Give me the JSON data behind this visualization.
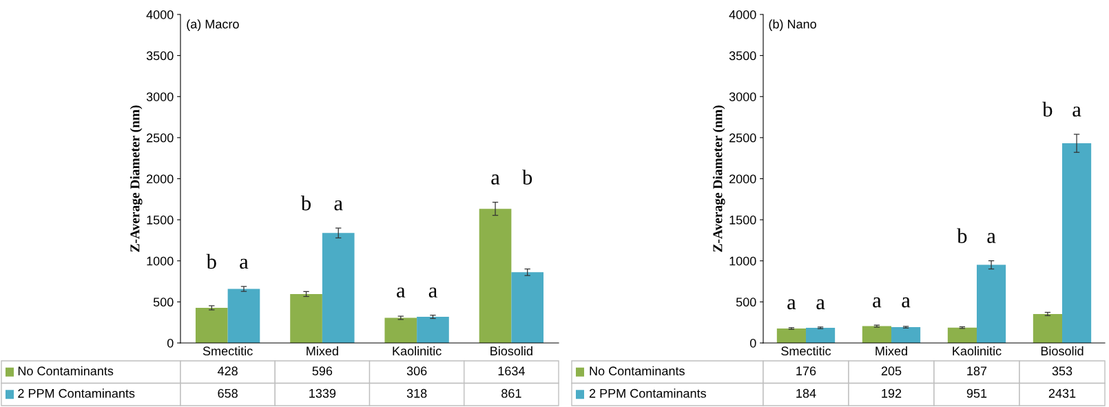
{
  "chart_data": [
    {
      "type": "bar",
      "title": "(a) Macro",
      "ylabel": "Z-Average Diameter (nm)",
      "categories": [
        "Smectitic",
        "Mixed",
        "Kaolinitic",
        "Biosolid"
      ],
      "series": [
        {
          "name": "No Contaminants",
          "color": "#8db14b",
          "values": [
            428,
            596,
            306,
            1634
          ],
          "errors": [
            25,
            30,
            20,
            80
          ]
        },
        {
          "name": "2 PPM Contaminants",
          "color": "#4bacc6",
          "values": [
            658,
            1339,
            318,
            861
          ],
          "errors": [
            30,
            60,
            20,
            40
          ]
        }
      ],
      "ylim": [
        0,
        4000
      ],
      "yticks": [
        0,
        500,
        1000,
        1500,
        2000,
        2500,
        3000,
        3500,
        4000
      ],
      "grid": false,
      "legend": "bottom left",
      "data_labels": true,
      "annotations": [
        "b",
        "a",
        "b",
        "a",
        "a",
        "a",
        "a",
        "b"
      ]
    },
    {
      "type": "bar",
      "title": "(b) Nano",
      "ylabel": "Z-Average Diameter (nm)",
      "categories": [
        "Smectitic",
        "Mixed",
        "Kaolinitic",
        "Biosolid"
      ],
      "series": [
        {
          "name": "No Contaminants",
          "color": "#8db14b",
          "values": [
            176,
            205,
            187,
            353
          ],
          "errors": [
            10,
            12,
            10,
            20
          ]
        },
        {
          "name": "2 PPM Contaminants",
          "color": "#4bacc6",
          "values": [
            184,
            192,
            951,
            2431
          ],
          "errors": [
            10,
            10,
            50,
            110
          ]
        }
      ],
      "ylim": [
        0,
        4000
      ],
      "yticks": [
        0,
        500,
        1000,
        1500,
        2000,
        2500,
        3000,
        3500,
        4000
      ],
      "grid": false,
      "legend": "bottom left",
      "data_labels": true,
      "annotations": [
        "a",
        "a",
        "a",
        "a",
        "b",
        "a",
        "b",
        "a"
      ]
    }
  ]
}
